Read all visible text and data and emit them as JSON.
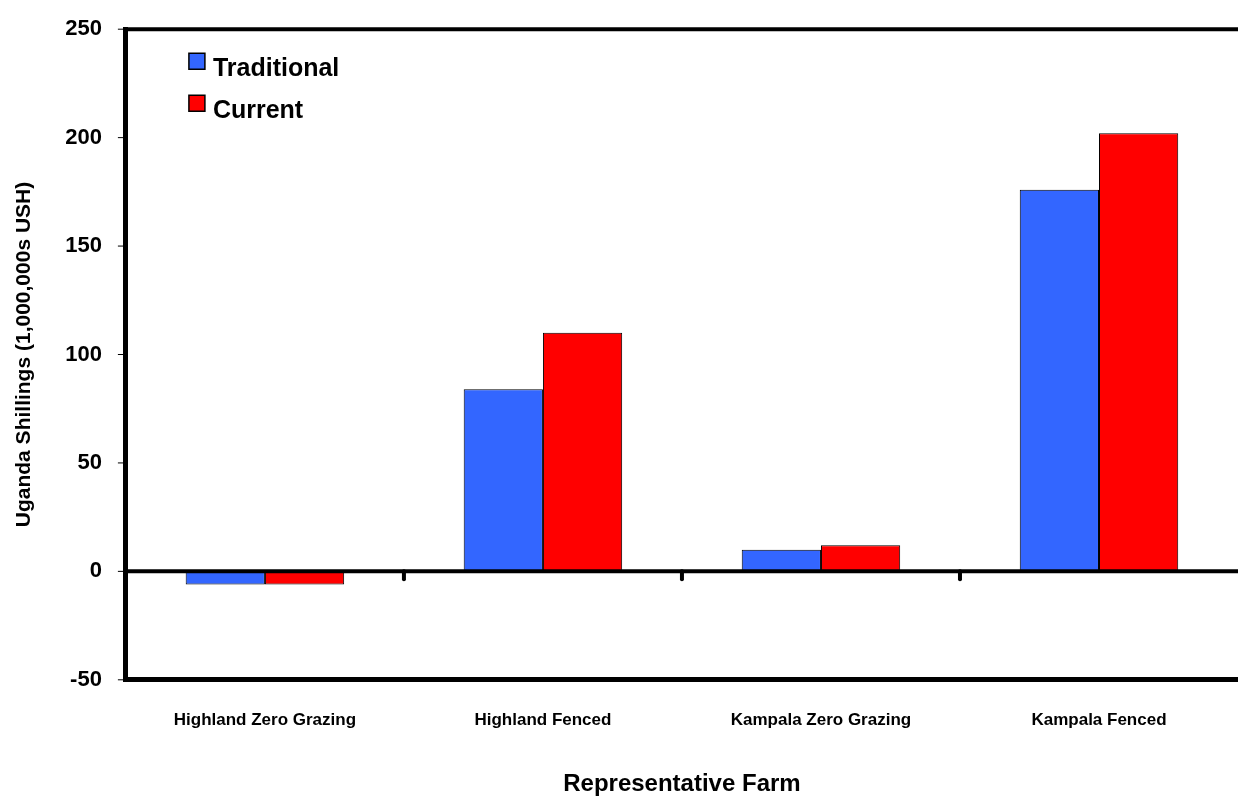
{
  "chart_data": {
    "type": "bar",
    "xlabel": "Representative Farm",
    "ylabel": "Uganda Shillings (1,000,000s USH)",
    "categories": [
      "Highland Zero Grazing",
      "Highland Fenced",
      "Kampala Zero Grazing",
      "Kampala Fenced"
    ],
    "series": [
      {
        "name": "Traditional",
        "color": "#3366ff",
        "values": [
          -6,
          84,
          10,
          176
        ]
      },
      {
        "name": "Current",
        "color": "#ff0000",
        "values": [
          -6,
          110,
          12,
          202
        ]
      }
    ],
    "ylim": [
      -50,
      250
    ],
    "yticks": [
      -50,
      0,
      50,
      100,
      150,
      200,
      250
    ],
    "grid": false,
    "ref_lines": [
      {
        "axis": "y",
        "value": 0,
        "color": "#000000"
      }
    ],
    "legend": "top left"
  }
}
